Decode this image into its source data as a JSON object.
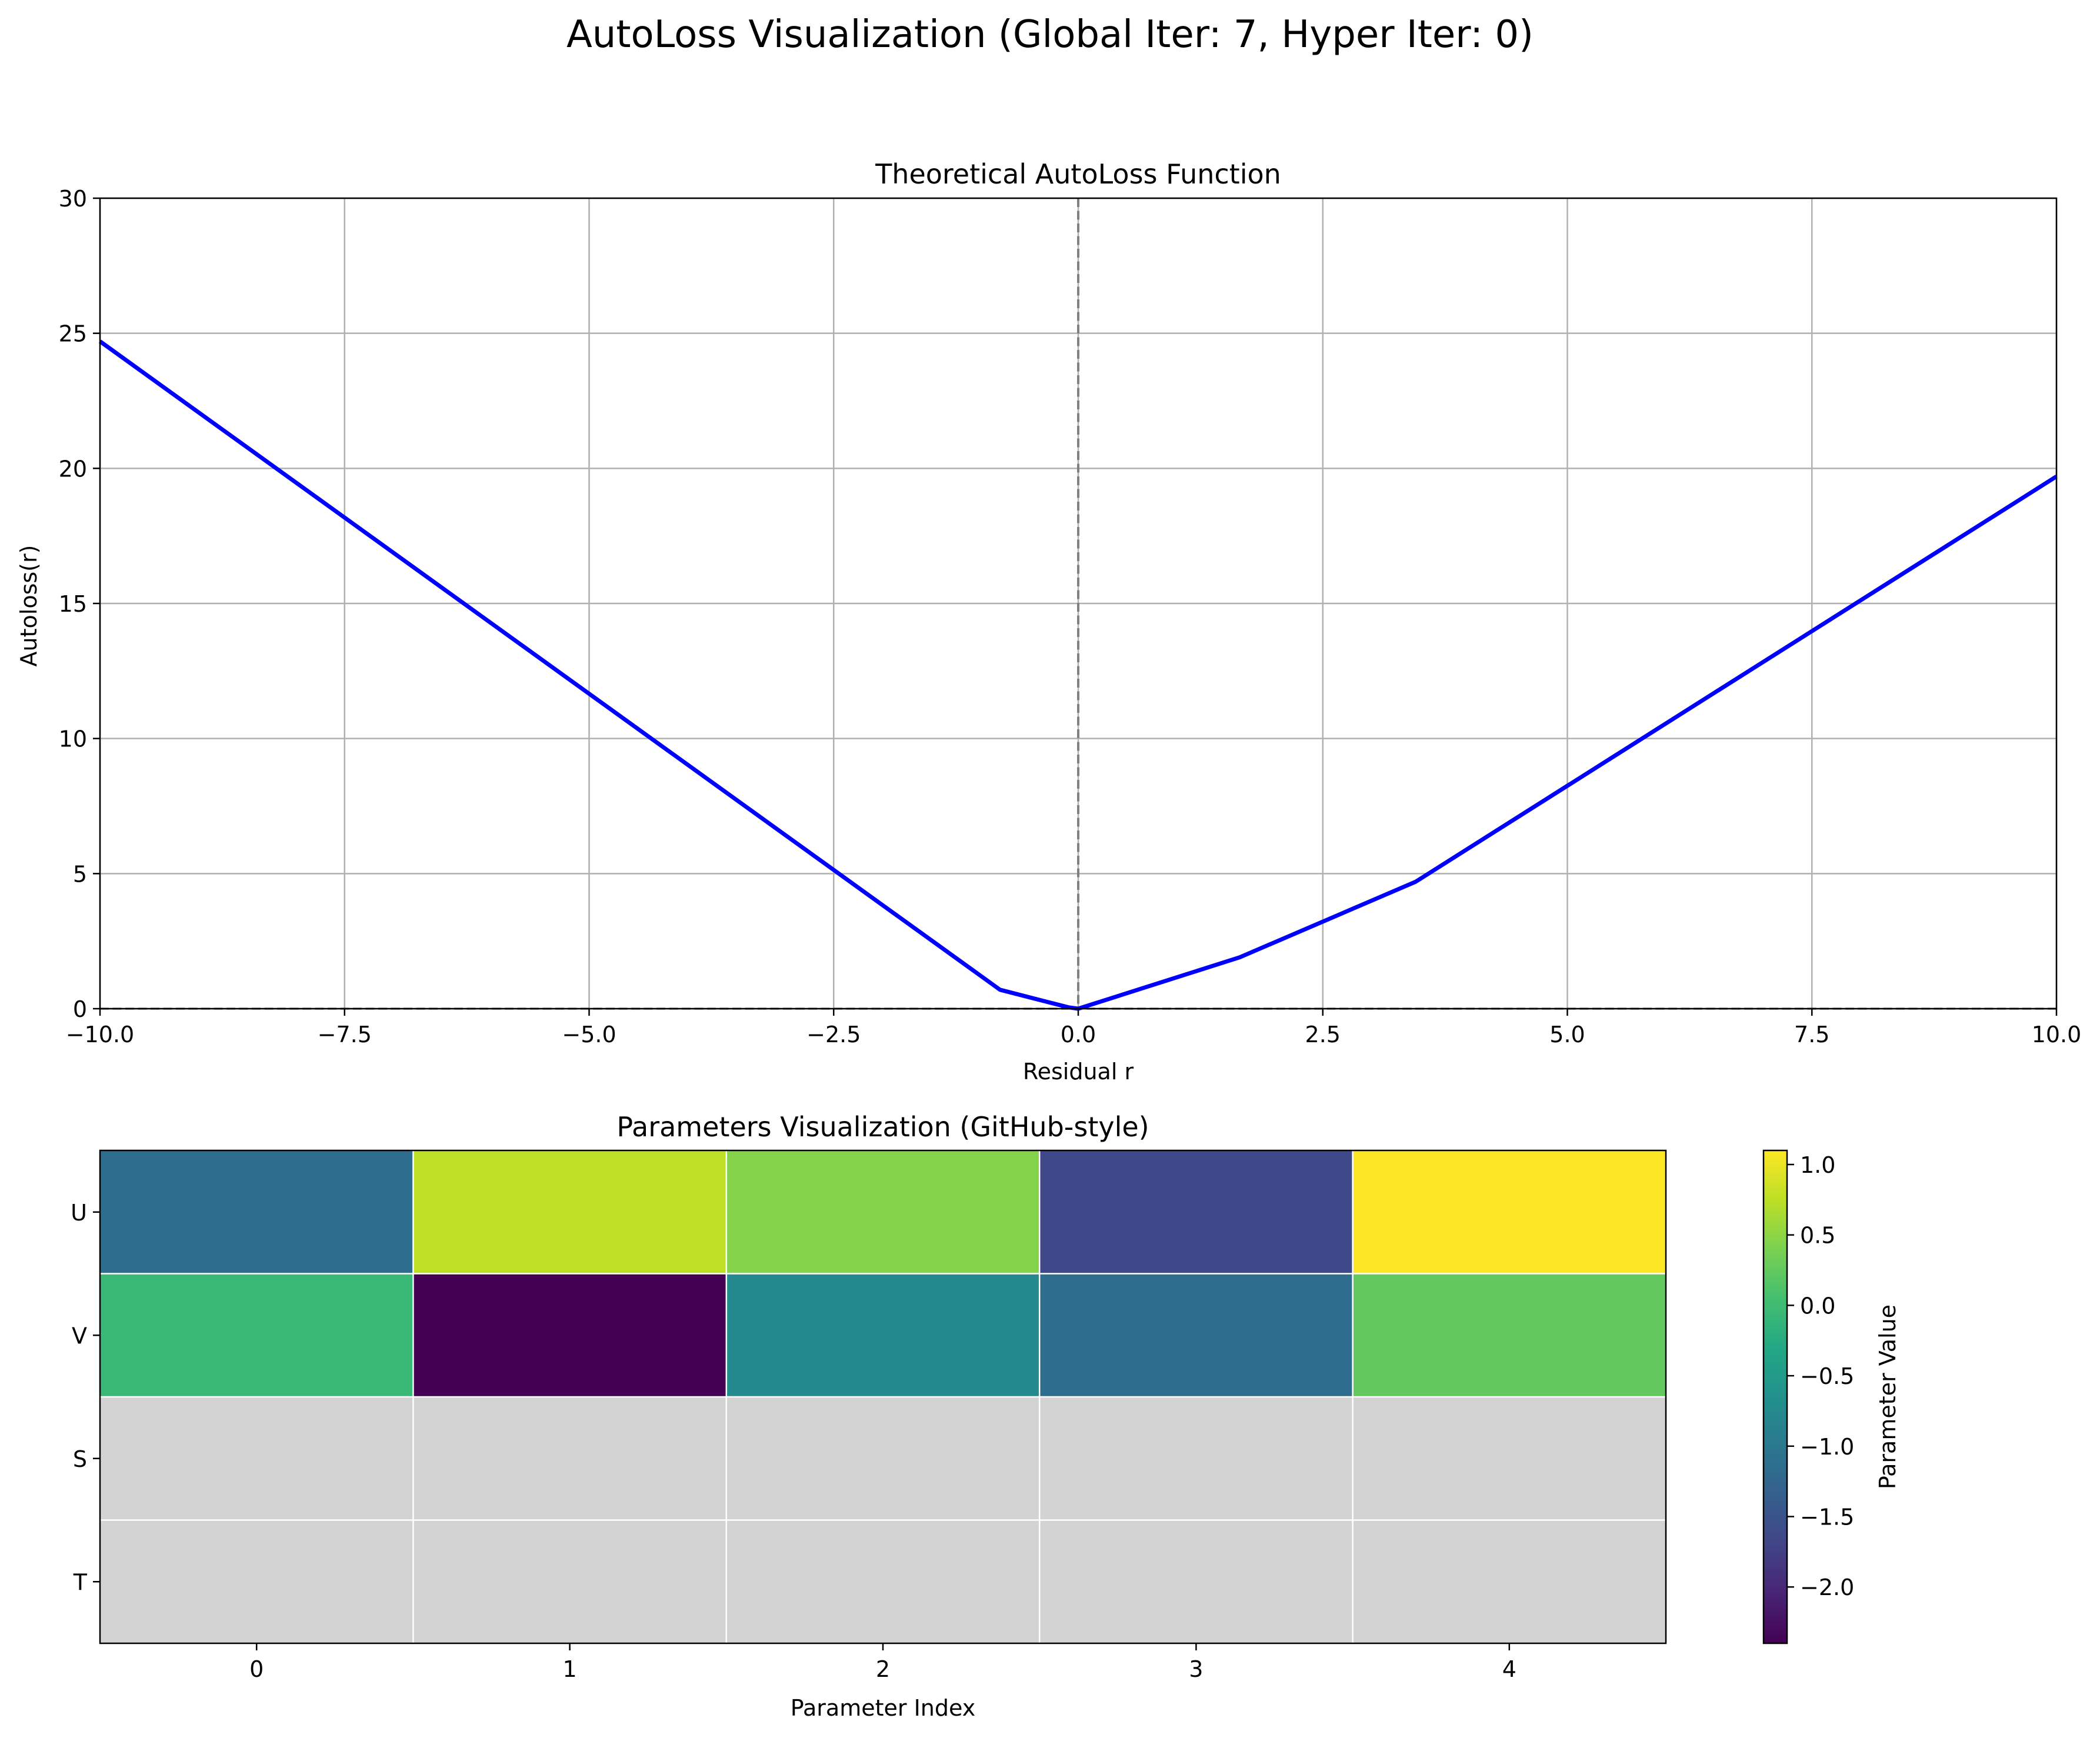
{
  "figure": {
    "title": "AutoLoss Visualization (Global Iter: 7, Hyper Iter: 0)"
  },
  "chart_data": [
    {
      "type": "line",
      "title": "Theoretical AutoLoss Function",
      "xlabel": "Residual r",
      "ylabel": "Autoloss(r)",
      "xlim": [
        -10,
        10
      ],
      "ylim": [
        0,
        30
      ],
      "xticks": [
        -10,
        -7.5,
        -5,
        -2.5,
        0,
        2.5,
        5,
        7.5,
        10
      ],
      "xtick_labels": [
        "−10.0",
        "−7.5",
        "−5.0",
        "−2.5",
        "0.0",
        "2.5",
        "5.0",
        "7.5",
        "10.0"
      ],
      "yticks": [
        0,
        5,
        10,
        15,
        20,
        25,
        30
      ],
      "ytick_labels": [
        "0",
        "5",
        "10",
        "15",
        "20",
        "25",
        "30"
      ],
      "grid": true,
      "vertical_reference_line": {
        "x": 0,
        "style": "dashed",
        "color": "#808080"
      },
      "horizontal_reference_line": {
        "y": 0,
        "style": "dashed",
        "color": "#000000"
      },
      "series": [
        {
          "color": "#0000ff",
          "x": [
            -10,
            -0.8,
            -0.1,
            0,
            1.65,
            3.45,
            10
          ],
          "y": [
            24.7,
            0.7,
            0.05,
            0,
            1.9,
            4.7,
            19.7
          ]
        }
      ]
    },
    {
      "type": "heatmap",
      "title": "Parameters Visualization (GitHub-style)",
      "xlabel": "Parameter Index",
      "ylabel": "",
      "x_categories": [
        "0",
        "1",
        "2",
        "3",
        "4"
      ],
      "y_categories": [
        "U",
        "V",
        "S",
        "T"
      ],
      "values": [
        [
          -1.15,
          0.75,
          0.45,
          -1.65,
          1.1
        ],
        [
          -0.05,
          -2.4,
          -0.75,
          -1.15,
          0.25
        ],
        [
          null,
          null,
          null,
          null,
          null
        ],
        [
          null,
          null,
          null,
          null,
          null
        ]
      ],
      "missing_color": "#d3d3d3",
      "colormap": "viridis",
      "colorbar": {
        "label": "Parameter Value",
        "vmin": -2.4,
        "vmax": 1.1,
        "ticks": [
          1.0,
          0.5,
          0.0,
          -0.5,
          -1.0,
          -1.5,
          -2.0
        ],
        "tick_labels": [
          "1.0",
          "0.5",
          "0.0",
          "−0.5",
          "−1.0",
          "−1.5",
          "−2.0"
        ]
      }
    }
  ]
}
